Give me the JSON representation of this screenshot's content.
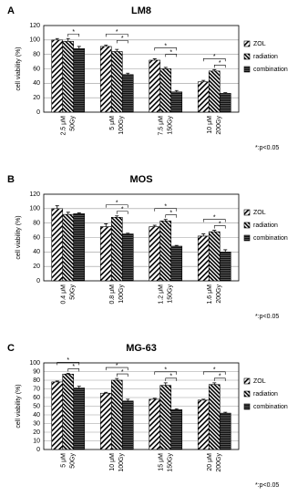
{
  "chart_data": [
    {
      "type": "bar",
      "panel": "A",
      "title": "LM8",
      "y_label": "cell viability (%)",
      "note": "*:p<0.05",
      "categories": [
        [
          "2.5 μM",
          "50Gy"
        ],
        [
          "5 μM",
          "100Gy"
        ],
        [
          "7.5 μM",
          "150Gy"
        ],
        [
          "10 μM",
          "200Gy"
        ]
      ],
      "series": [
        {
          "name": "ZOL",
          "color": "#000000",
          "pattern": "diagonal",
          "values": [
            100,
            91,
            72,
            42
          ],
          "errors": [
            2,
            2,
            2,
            2
          ]
        },
        {
          "name": "radiation",
          "color": "#000000",
          "pattern": "diagonal-dense",
          "values": [
            98,
            84,
            60,
            57
          ],
          "errors": [
            4,
            3,
            2,
            2
          ]
        },
        {
          "name": "combination",
          "color": "#000000",
          "pattern": "horizontal",
          "values": [
            88,
            52,
            28,
            26
          ],
          "errors": [
            3,
            2,
            2,
            1
          ]
        }
      ],
      "comparisons": [
        {
          "group": 0,
          "bars": [
            1,
            2
          ],
          "label": "*"
        },
        {
          "group": 1,
          "bars": [
            0,
            2
          ],
          "label": "*"
        },
        {
          "group": 1,
          "bars": [
            1,
            2
          ],
          "label": "*"
        },
        {
          "group": 2,
          "bars": [
            0,
            2
          ],
          "label": "*"
        },
        {
          "group": 2,
          "bars": [
            1,
            2
          ],
          "label": "*"
        },
        {
          "group": 3,
          "bars": [
            0,
            2
          ],
          "label": "*"
        },
        {
          "group": 3,
          "bars": [
            1,
            2
          ],
          "label": "*"
        }
      ],
      "ylim": [
        0,
        120
      ],
      "yticks": [
        0,
        20,
        40,
        60,
        80,
        100,
        120
      ],
      "grid": true
    },
    {
      "type": "bar",
      "panel": "B",
      "title": "MOS",
      "y_label": "cell viability (%)",
      "note": "*:p<0.05",
      "categories": [
        [
          "0.4 μM",
          "50Gy"
        ],
        [
          "0.8 μM",
          "100Gy"
        ],
        [
          "1.2 μM",
          "150Gy"
        ],
        [
          "1.6 μM",
          "200Gy"
        ]
      ],
      "series": [
        {
          "name": "ZOL",
          "color": "#000000",
          "pattern": "diagonal",
          "values": [
            100,
            75,
            75,
            62
          ],
          "errors": [
            4,
            4,
            2,
            3
          ]
        },
        {
          "name": "radiation",
          "color": "#000000",
          "pattern": "diagonal-dense",
          "values": [
            92,
            88,
            83,
            68
          ],
          "errors": [
            3,
            2,
            2,
            2
          ]
        },
        {
          "name": "combination",
          "color": "#000000",
          "pattern": "horizontal",
          "values": [
            93,
            65,
            48,
            40
          ],
          "errors": [
            1,
            1,
            1,
            3
          ]
        }
      ],
      "comparisons": [
        {
          "group": 1,
          "bars": [
            0,
            2
          ],
          "label": "*"
        },
        {
          "group": 1,
          "bars": [
            1,
            2
          ],
          "label": "*"
        },
        {
          "group": 2,
          "bars": [
            0,
            2
          ],
          "label": "*"
        },
        {
          "group": 2,
          "bars": [
            1,
            2
          ],
          "label": "*"
        },
        {
          "group": 3,
          "bars": [
            0,
            2
          ],
          "label": "*"
        },
        {
          "group": 3,
          "bars": [
            1,
            2
          ],
          "label": "*"
        }
      ],
      "ylim": [
        0,
        120
      ],
      "yticks": [
        0,
        20,
        40,
        60,
        80,
        100,
        120
      ],
      "grid": true
    },
    {
      "type": "bar",
      "panel": "C",
      "title": "MG-63",
      "y_label": "cell viability (%)",
      "note": "*:p<0.05",
      "categories": [
        [
          "5 μM",
          "50Gy"
        ],
        [
          "10 μM",
          "100Gy"
        ],
        [
          "15 μM",
          "150Gy"
        ],
        [
          "20 μM",
          "200Gy"
        ]
      ],
      "series": [
        {
          "name": "ZOL",
          "color": "#000000",
          "pattern": "diagonal",
          "values": [
            78,
            65,
            58,
            57
          ],
          "errors": [
            1,
            1,
            1,
            1
          ]
        },
        {
          "name": "radiation",
          "color": "#000000",
          "pattern": "diagonal-dense",
          "values": [
            87,
            80,
            74,
            75
          ],
          "errors": [
            1,
            2,
            3,
            2
          ]
        },
        {
          "name": "combination",
          "color": "#000000",
          "pattern": "horizontal",
          "values": [
            71,
            56,
            46,
            42
          ],
          "errors": [
            2,
            2,
            1,
            1
          ]
        }
      ],
      "comparisons": [
        {
          "group": 0,
          "bars": [
            0,
            2
          ],
          "label": "*"
        },
        {
          "group": 0,
          "bars": [
            1,
            2
          ],
          "label": "*"
        },
        {
          "group": 1,
          "bars": [
            0,
            2
          ],
          "label": "*"
        },
        {
          "group": 1,
          "bars": [
            1,
            2
          ],
          "label": "*"
        },
        {
          "group": 2,
          "bars": [
            0,
            2
          ],
          "label": "*"
        },
        {
          "group": 2,
          "bars": [
            1,
            2
          ],
          "label": "*"
        },
        {
          "group": 3,
          "bars": [
            0,
            2
          ],
          "label": "*"
        },
        {
          "group": 3,
          "bars": [
            1,
            2
          ],
          "label": "*"
        }
      ],
      "ylim": [
        0,
        100
      ],
      "yticks": [
        0,
        10,
        20,
        30,
        40,
        50,
        60,
        70,
        80,
        90,
        100
      ],
      "grid": true
    }
  ]
}
